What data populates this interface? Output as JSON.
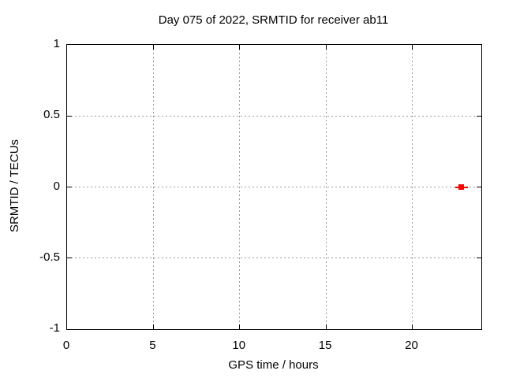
{
  "chart_data": {
    "type": "scatter",
    "title": "Day 075 of 2022, SRMTID for receiver ab11",
    "xlabel": "GPS time / hours",
    "ylabel": "SRMTID / TECUs",
    "xlim": [
      0,
      24
    ],
    "ylim": [
      -1,
      1
    ],
    "x_ticks": [
      0,
      5,
      10,
      15,
      20
    ],
    "x_tick_labels": [
      "0",
      "5",
      "10",
      "15",
      "20"
    ],
    "y_ticks": [
      -1,
      -0.5,
      0,
      0.5,
      1
    ],
    "y_tick_labels": [
      "-1",
      "-0.5",
      "0",
      "0.5",
      "1"
    ],
    "x_grid_ticks": [
      5,
      10,
      15,
      20
    ],
    "y_grid_ticks": [
      -0.5,
      0,
      0.5
    ],
    "grid": true,
    "grid_style": "dashed",
    "grid_color": "#999999",
    "border_color": "#000000",
    "background_color": "#ffffff",
    "text_color": "#000000",
    "legend": null,
    "series": [
      {
        "name": "SRMTID",
        "marker": "filled-square",
        "color": "#ff0000",
        "points": [
          {
            "x": 22.85,
            "y": 0.0,
            "xerr": 0.35
          }
        ]
      }
    ]
  }
}
